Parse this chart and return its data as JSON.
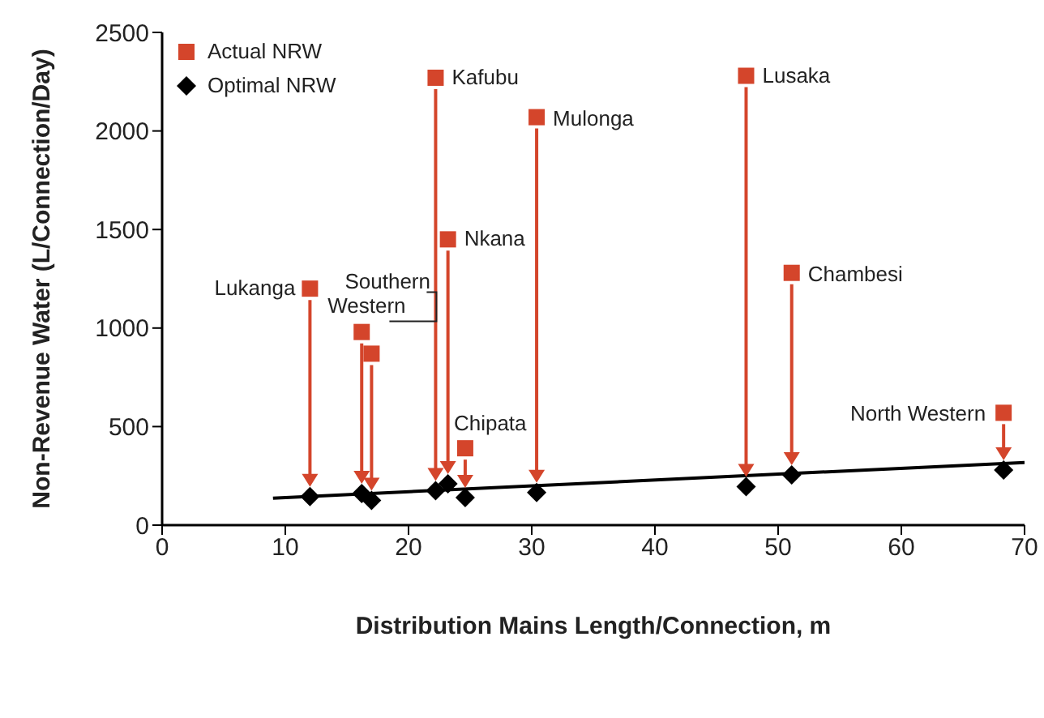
{
  "chart_data": {
    "type": "scatter",
    "xlabel": "Distribution Mains Length/Connection, m",
    "ylabel": "Non-Revenue Water (L/Connection/Day)",
    "xlim": [
      0,
      70
    ],
    "xticks": [
      0,
      10,
      20,
      30,
      40,
      50,
      60,
      70
    ],
    "ylim": [
      0,
      2500
    ],
    "yticks": [
      0,
      500,
      1000,
      1500,
      2000,
      2500
    ],
    "grid": false,
    "legend": "top left",
    "series": [
      {
        "name": "Actual NRW",
        "color": "#d4452b",
        "marker": "square",
        "x": [
          12.0,
          16.2,
          17.0,
          22.2,
          23.2,
          24.6,
          30.4,
          47.4,
          51.1,
          68.3
        ],
        "values": [
          1200,
          980,
          870,
          2270,
          1450,
          390,
          2070,
          2280,
          1280,
          570
        ]
      },
      {
        "name": "Optimal NRW",
        "color": "#000000",
        "marker": "diamond",
        "x": [
          12.0,
          16.2,
          17.0,
          22.2,
          23.2,
          24.6,
          30.4,
          47.4,
          51.1,
          68.3
        ],
        "values": [
          145,
          160,
          125,
          175,
          210,
          140,
          165,
          195,
          255,
          280
        ]
      },
      {
        "type": "line",
        "color": "#000000",
        "marker": "none",
        "x": [
          9,
          70
        ],
        "values": [
          137,
          318
        ]
      }
    ],
    "annotations": [
      {
        "text": "Lukanga",
        "x": 12.0,
        "y": 1200
      },
      {
        "text": "Southern",
        "x": 16.2,
        "y": 980
      },
      {
        "text": "Western",
        "x": 17.0,
        "y": 870
      },
      {
        "text": "Kafubu",
        "x": 22.2,
        "y": 2270
      },
      {
        "text": "Nkana",
        "x": 23.2,
        "y": 1450
      },
      {
        "text": "Chipata",
        "x": 24.6,
        "y": 390
      },
      {
        "text": "Mulonga",
        "x": 30.4,
        "y": 2070
      },
      {
        "text": "Lusaka",
        "x": 47.4,
        "y": 2280
      },
      {
        "text": "Chambesi",
        "x": 51.1,
        "y": 1280
      },
      {
        "text": "North Western",
        "x": 68.3,
        "y": 570
      }
    ]
  }
}
